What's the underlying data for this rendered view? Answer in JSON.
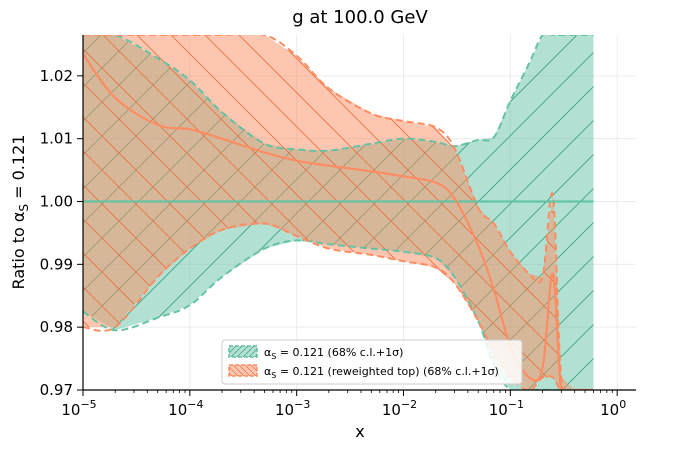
{
  "chart_data": {
    "type": "area",
    "title": "g at 100.0 GeV",
    "xlabel": "x",
    "ylabel_main": "Ratio to α",
    "ylabel_sub": "S",
    "ylabel_tail": " = 0.121",
    "xscale": "log",
    "xlim": [
      1e-05,
      1.5
    ],
    "ylim": [
      0.97,
      1.0265
    ],
    "xtick_values": [
      1e-05,
      0.0001,
      0.001,
      0.01,
      0.1,
      1
    ],
    "xtick_bases": [
      "10",
      "10",
      "10",
      "10",
      "10",
      "10"
    ],
    "xtick_exps": [
      "−5",
      "−4",
      "−3",
      "−2",
      "−1",
      "0"
    ],
    "ytick_values": [
      0.97,
      0.98,
      0.99,
      1.0,
      1.01,
      1.02
    ],
    "ytick_labels": [
      "0.97",
      "0.98",
      "0.99",
      "1.00",
      "1.01",
      "1.02"
    ],
    "grid": true,
    "legend_position": "lower-center",
    "colors": {
      "green": "#66c2a5",
      "orange": "#fc8d62"
    },
    "x": [
      1e-05,
      2e-05,
      5e-05,
      0.0001,
      0.0002,
      0.0005,
      0.001,
      0.002,
      0.005,
      0.01,
      0.02,
      0.03,
      0.05,
      0.07,
      0.1,
      0.15,
      0.2,
      0.25,
      0.3,
      0.4,
      0.5,
      0.6
    ],
    "series": [
      {
        "name": "green",
        "legend_pre": "α",
        "legend_sub": "S",
        "legend_post": " = 0.121 (68% c.l.+1σ)",
        "central": [
          1.0,
          1.0,
          1.0,
          1.0,
          1.0,
          1.0,
          1.0,
          1.0,
          1.0,
          1.0,
          1.0,
          1.0,
          1.0,
          1.0,
          1.0,
          1.0,
          1.0,
          1.0,
          1.0,
          1.0,
          1.0,
          1.0
        ],
        "upper": [
          1.0265,
          1.0265,
          1.0228,
          1.0193,
          1.0142,
          1.0092,
          1.0083,
          1.0081,
          1.0092,
          1.01,
          1.0095,
          1.0088,
          1.0098,
          1.0102,
          1.016,
          1.022,
          1.0265,
          1.0265,
          1.0265,
          1.0265,
          1.0265,
          1.0265
        ],
        "lower": [
          0.9825,
          0.9795,
          0.9815,
          0.9835,
          0.988,
          0.9925,
          0.9938,
          0.9932,
          0.9925,
          0.992,
          0.991,
          0.988,
          0.981,
          0.974,
          0.97,
          0.97,
          0.97,
          0.97,
          0.97,
          0.97,
          0.97,
          0.97
        ]
      },
      {
        "name": "orange",
        "legend_pre": "α",
        "legend_sub": "S",
        "legend_post": " = 0.121 (reweighted top) (68% c.l.+1σ)",
        "central": [
          1.0235,
          1.0165,
          1.0122,
          1.0115,
          1.01,
          1.0078,
          1.0065,
          1.0057,
          1.0048,
          1.004,
          1.003,
          1.0005,
          0.993,
          0.986,
          0.977,
          0.972,
          0.9735,
          0.9885,
          0.97,
          0.97,
          0.97,
          0.97
        ],
        "upper": [
          1.0265,
          1.0265,
          1.0265,
          1.0265,
          1.0265,
          1.0265,
          1.0232,
          1.018,
          1.014,
          1.0128,
          1.0118,
          1.0085,
          0.999,
          0.9965,
          0.992,
          0.9885,
          0.988,
          1.001,
          0.972,
          0.97,
          0.97,
          0.97
        ],
        "lower": [
          0.98,
          0.98,
          0.988,
          0.9925,
          0.9955,
          0.9965,
          0.9945,
          0.9925,
          0.9915,
          0.9905,
          0.9895,
          0.987,
          0.981,
          0.976,
          0.972,
          0.97,
          0.972,
          0.972,
          0.97,
          0.97,
          0.97,
          0.97
        ]
      }
    ]
  }
}
